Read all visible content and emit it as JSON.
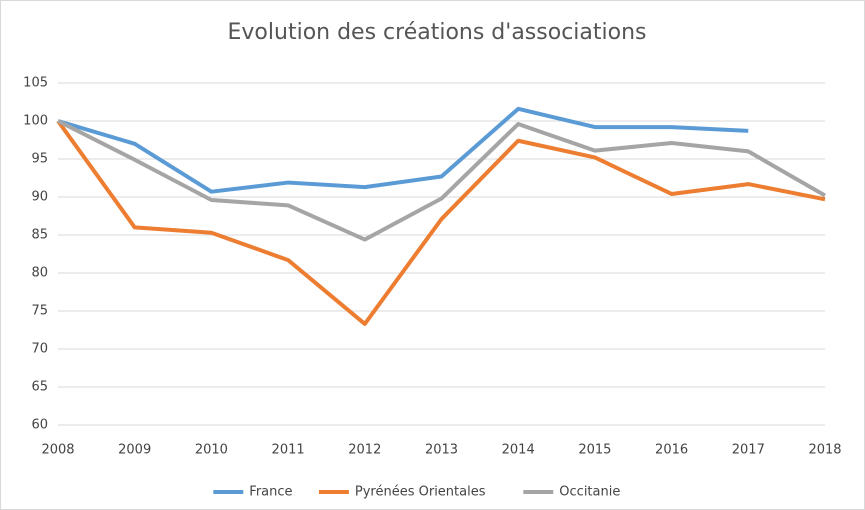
{
  "chart_data": {
    "type": "line",
    "title": "Evolution des créations d'associations",
    "x": [
      2008,
      2009,
      2010,
      2011,
      2012,
      2013,
      2014,
      2015,
      2016,
      2017,
      2018
    ],
    "series": [
      {
        "name": "France",
        "color": "#5b9bd5",
        "values": [
          100,
          97,
          90.7,
          91.9,
          91.3,
          92.7,
          101.6,
          99.2,
          99.2,
          98.7,
          null
        ]
      },
      {
        "name": "Pyrénées Orientales",
        "color": "#ed7d31",
        "values": [
          100,
          86,
          85.3,
          81.7,
          73.3,
          87.1,
          97.4,
          95.2,
          90.4,
          91.7,
          89.7
        ]
      },
      {
        "name": "Occitanie",
        "color": "#a5a5a5",
        "values": [
          100,
          94.9,
          89.6,
          88.9,
          84.4,
          89.8,
          99.6,
          96.1,
          97.1,
          96.0,
          90.2
        ]
      }
    ],
    "xlim": [
      2008,
      2018
    ],
    "xticks": [
      2008,
      2009,
      2010,
      2011,
      2012,
      2013,
      2014,
      2015,
      2016,
      2017,
      2018
    ],
    "ylim": [
      60,
      105
    ],
    "yticks": [
      60,
      65,
      70,
      75,
      80,
      85,
      90,
      95,
      100,
      105
    ],
    "grid": true,
    "legend": "bottom"
  }
}
